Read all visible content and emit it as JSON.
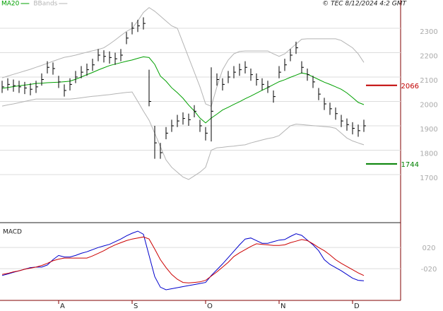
{
  "chart_data": [
    {
      "type": "ohlc",
      "source": "© TEC 8/12/2024 4:2 GMT",
      "categories": [
        null,
        null,
        null,
        null,
        null,
        null,
        null,
        null,
        null,
        null,
        "A",
        null,
        null,
        null,
        null,
        null,
        null,
        null,
        null,
        null,
        null,
        null,
        null,
        "S",
        null,
        null,
        null,
        null,
        null,
        null,
        null,
        null,
        null,
        null,
        null,
        null,
        "O",
        null,
        null,
        null,
        null,
        null,
        null,
        null,
        null,
        null,
        null,
        null,
        null,
        "N",
        null,
        null,
        null,
        null,
        null,
        null,
        null,
        null,
        null,
        null,
        null,
        null,
        "D",
        null,
        null
      ],
      "high": [
        2085,
        2095,
        2090,
        2085,
        2080,
        2075,
        2085,
        2115,
        2165,
        2160,
        2105,
        2070,
        2095,
        2125,
        2145,
        2155,
        2175,
        2215,
        2210,
        2205,
        2200,
        2215,
        2285,
        2325,
        2335,
        2345,
        2130,
        1900,
        1830,
        1895,
        1925,
        1945,
        1955,
        1950,
        1985,
        1925,
        1895,
        2140,
        2115,
        2095,
        2125,
        2145,
        2155,
        2165,
        2135,
        2115,
        2095,
        2085,
        2045,
        2145,
        2175,
        2215,
        2245,
        2165,
        2135,
        2105,
        2055,
        2015,
        1995,
        1975,
        1945,
        1930,
        1915,
        1905,
        1925
      ],
      "low": [
        2035,
        2045,
        2040,
        2035,
        2030,
        2025,
        2035,
        2065,
        2115,
        2110,
        2055,
        2020,
        2045,
        2075,
        2095,
        2105,
        2125,
        2165,
        2160,
        2155,
        2150,
        2165,
        2235,
        2275,
        2285,
        2295,
        1980,
        1765,
        1765,
        1845,
        1875,
        1895,
        1905,
        1900,
        1935,
        1875,
        1840,
        1836,
        2065,
        2045,
        2075,
        2095,
        2105,
        2115,
        2085,
        2065,
        2045,
        2035,
        1995,
        2095,
        2125,
        2165,
        2195,
        2115,
        2085,
        2055,
        2005,
        1965,
        1945,
        1925,
        1895,
        1880,
        1865,
        1855,
        1875
      ],
      "close": [
        2060,
        2070,
        2065,
        2060,
        2055,
        2050,
        2060,
        2090,
        2140,
        2135,
        2080,
        2045,
        2070,
        2100,
        2120,
        2130,
        2150,
        2190,
        2185,
        2180,
        2175,
        2190,
        2260,
        2300,
        2310,
        2320,
        2000,
        1830,
        1790,
        1870,
        1900,
        1920,
        1930,
        1925,
        1960,
        1900,
        1870,
        1960,
        2090,
        2070,
        2100,
        2120,
        2130,
        2140,
        2110,
        2090,
        2070,
        2060,
        2020,
        2120,
        2150,
        2190,
        2220,
        2140,
        2110,
        2080,
        2030,
        1990,
        1970,
        1950,
        1920,
        1905,
        1890,
        1880,
        1900
      ],
      "bar_color": "#000000",
      "series": [
        {
          "name": "MA20",
          "color": "#00a000",
          "values": [
            2054,
            2057,
            2061,
            2064,
            2067,
            2070,
            2074,
            2075,
            2077,
            2078,
            2079,
            2081,
            2083,
            2091,
            2100,
            2110,
            2119,
            2129,
            2138,
            2147,
            2153,
            2159,
            2165,
            2170,
            2177,
            2183,
            2180,
            2152,
            2104,
            2083,
            2056,
            2036,
            2013,
            1985,
            1961,
            1932,
            1912,
            1932,
            1948,
            1965,
            1976,
            1988,
            1999,
            2011,
            2022,
            2034,
            2046,
            2057,
            2069,
            2081,
            2089,
            2099,
            2108,
            2117,
            2112,
            2101,
            2090,
            2079,
            2070,
            2060,
            2050,
            2035,
            2016,
            1996,
            1987
          ]
        },
        {
          "name": "BBands",
          "color": "#b4b4b4",
          "values": [
            2097,
            2104,
            2111,
            2118,
            2125,
            2132,
            2140,
            2148,
            2156,
            2165,
            2173,
            2181,
            2185,
            2190,
            2196,
            2202,
            2208,
            2213,
            2220,
            2235,
            2252,
            2270,
            2287,
            2300,
            2330,
            2365,
            2385,
            2370,
            2350,
            2330,
            2310,
            2300,
            2240,
            2180,
            2120,
            2060,
            1990,
            1980,
            2060,
            2130,
            2170,
            2195,
            2205,
            2207,
            2207,
            2207,
            2207,
            2207,
            2195,
            2185,
            2195,
            2215,
            2235,
            2255,
            2257,
            2257,
            2257,
            2257,
            2257,
            2257,
            2250,
            2235,
            2220,
            2195,
            2160
          ],
          "lower": [
            1981,
            1986,
            1990,
            1995,
            2000,
            2005,
            2010,
            2010,
            2010,
            2010,
            2010,
            2010,
            2010,
            2012,
            2015,
            2018,
            2021,
            2023,
            2026,
            2028,
            2031,
            2034,
            2037,
            2039,
            2000,
            1960,
            1923,
            1870,
            1815,
            1760,
            1730,
            1710,
            1690,
            1680,
            1695,
            1710,
            1730,
            1800,
            1810,
            1812,
            1815,
            1817,
            1820,
            1822,
            1830,
            1836,
            1842,
            1848,
            1852,
            1860,
            1880,
            1900,
            1907,
            1905,
            1903,
            1901,
            1899,
            1897,
            1895,
            1890,
            1870,
            1850,
            1838,
            1830,
            1822
          ]
        }
      ],
      "levels": [
        {
          "value": 2066,
          "color": "#c00000"
        },
        {
          "value": 1744,
          "color": "#008000"
        }
      ],
      "ylim": [
        1503,
        2416
      ],
      "yticks": [
        1700,
        1800,
        1900,
        2000,
        2100,
        2200,
        2300
      ],
      "grid": true
    },
    {
      "type": "line",
      "title": "MACD",
      "series": [
        {
          "color": "#0000cc",
          "values": [
            -33,
            -30,
            -27,
            -24,
            -21,
            -18,
            -17,
            -17,
            -13,
            -3,
            5,
            2,
            2,
            5,
            9,
            12,
            16,
            20,
            23,
            26,
            31,
            36,
            42,
            47,
            51,
            45,
            5,
            -35,
            -55,
            -60,
            -58,
            -56,
            -54,
            -52,
            -50,
            -48,
            -46,
            -33,
            -22,
            -11,
            1,
            13,
            25,
            36,
            38,
            33,
            28,
            28,
            31,
            34,
            35,
            41,
            46,
            43,
            34,
            25,
            14,
            -3,
            -12,
            -18,
            -24,
            -31,
            -38,
            -42,
            -43
          ]
        },
        {
          "color": "#cc0000",
          "values": [
            -31,
            -29,
            -26,
            -24,
            -21,
            -19,
            -17,
            -14,
            -10,
            -5,
            -2,
            0,
            0,
            0,
            0,
            0,
            4,
            9,
            14,
            20,
            25,
            29,
            33,
            36,
            38,
            40,
            36,
            17,
            -3,
            -18,
            -31,
            -40,
            -46,
            -47,
            -46,
            -45,
            -42,
            -34,
            -26,
            -17,
            -8,
            3,
            10,
            16,
            22,
            27,
            26,
            25,
            24,
            24,
            25,
            29,
            32,
            35,
            33,
            27,
            20,
            14,
            6,
            -3,
            -10,
            -16,
            -22,
            -28,
            -33
          ]
        }
      ],
      "ylim": [
        -80,
        67
      ],
      "yticks": [
        {
          "value": 20,
          "label": "020"
        },
        {
          "value": -20,
          "label": "-020"
        }
      ],
      "grid": true
    }
  ]
}
